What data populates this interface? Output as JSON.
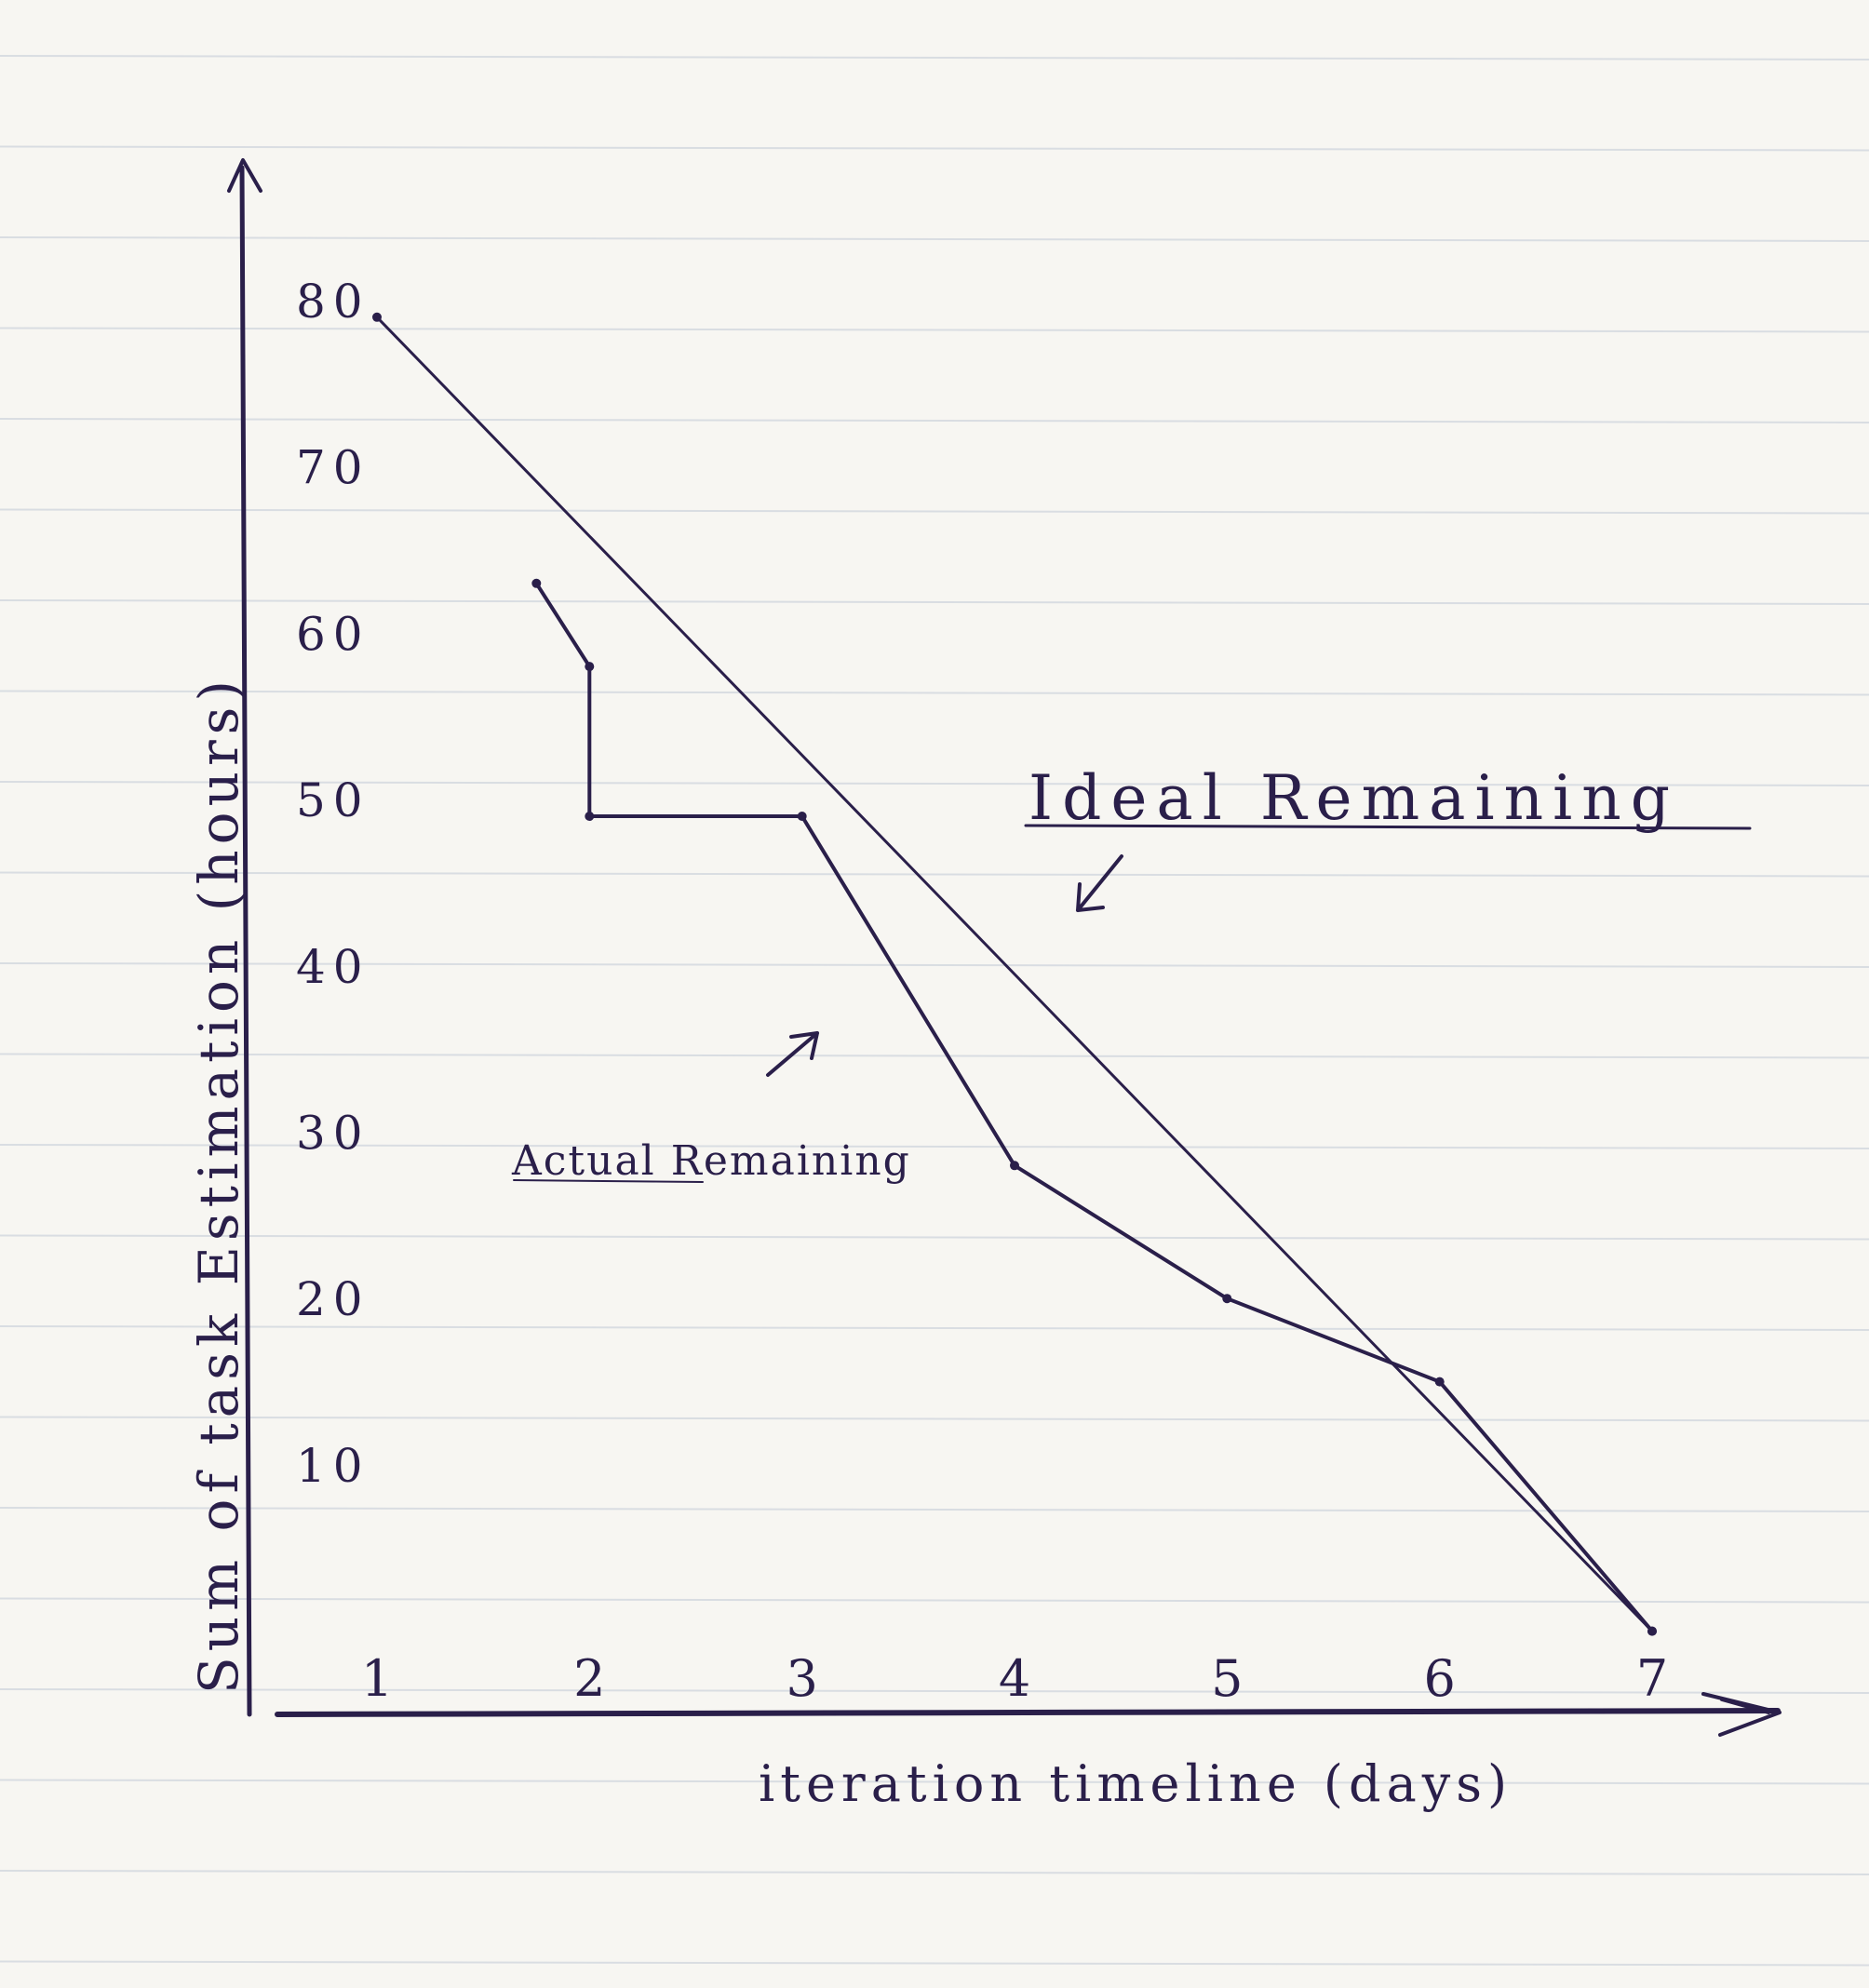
{
  "chart_data": {
    "type": "line",
    "title": "",
    "xlabel": "iteration timeline (days)",
    "ylabel": "Sum of task Estimation (hours)",
    "x_ticks": [
      "1",
      "2",
      "3",
      "4",
      "5",
      "6",
      "7"
    ],
    "y_ticks": [
      "10",
      "20",
      "30",
      "40",
      "50",
      "60",
      "70",
      "80"
    ],
    "xlim": [
      0.4,
      7.6
    ],
    "ylim": [
      -5,
      88
    ],
    "grid": false,
    "series": [
      {
        "name": "Ideal Remaining",
        "points": [
          [
            1,
            79
          ],
          [
            7,
            0
          ]
        ]
      },
      {
        "name": "Actual Remaining",
        "points": [
          [
            1.75,
            63
          ],
          [
            2,
            58
          ],
          [
            2,
            49
          ],
          [
            3,
            49
          ],
          [
            4,
            28
          ],
          [
            5,
            20
          ],
          [
            6,
            15
          ],
          [
            7,
            0
          ]
        ]
      }
    ],
    "annotations": [
      "Ideal Remaining",
      "Actual Remaining"
    ],
    "colors": {
      "ink": "#2a1f4a",
      "paper": "#f7f6f2",
      "rule": "#d9dde2"
    }
  }
}
